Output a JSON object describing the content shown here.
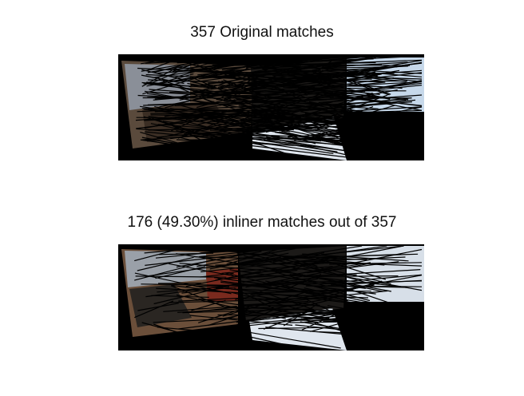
{
  "figure": {
    "top_title": "357 Original matches",
    "bottom_title": "176 (49.30%) inliner matches out of 357"
  },
  "panels": {
    "top": {
      "name": "original-matches",
      "line_count": 357
    },
    "bottom": {
      "name": "inlier-matches",
      "line_count": 176
    }
  },
  "colors": {
    "background": "#000000",
    "match_line": "#000000",
    "paper": "#dfe6ee",
    "sky": "#c6d8ea",
    "scene_warm": "#6b4f3a",
    "scene_mid": "#8a8f98",
    "scene_dark": "#2a2622"
  }
}
